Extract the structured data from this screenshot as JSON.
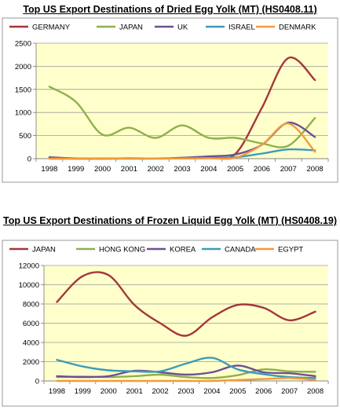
{
  "chart_data": [
    {
      "type": "line",
      "title": "Top US Export Destinations of Dried Egg Yolk (MT) (HS0408.11)",
      "xlabel": "",
      "ylabel": "",
      "x": [
        "1998",
        "1999",
        "2000",
        "2001",
        "2002",
        "2003",
        "2004",
        "2005",
        "2006",
        "2007",
        "2008"
      ],
      "ylim": [
        0,
        2500
      ],
      "yticks": [
        0,
        500,
        1000,
        1500,
        2000,
        2500
      ],
      "grid": true,
      "legend": "top",
      "background": "#ffffcc",
      "series": [
        {
          "name": "GERMANY",
          "color": "#a4373a",
          "values": [
            20,
            0,
            0,
            5,
            5,
            5,
            30,
            100,
            1100,
            2180,
            1700
          ]
        },
        {
          "name": "JAPAN",
          "color": "#8fb04b",
          "values": [
            1560,
            1230,
            520,
            670,
            450,
            720,
            450,
            450,
            330,
            280,
            880
          ]
        },
        {
          "name": "UK",
          "color": "#6e4f95",
          "values": [
            30,
            5,
            0,
            10,
            5,
            20,
            50,
            90,
            300,
            780,
            470
          ]
        },
        {
          "name": "ISRAEL",
          "color": "#3d9bb8",
          "values": [
            0,
            0,
            0,
            0,
            0,
            5,
            10,
            30,
            110,
            200,
            180
          ]
        },
        {
          "name": "DENMARK",
          "color": "#f39a3b",
          "values": [
            0,
            0,
            0,
            5,
            5,
            5,
            10,
            20,
            300,
            760,
            150
          ]
        }
      ]
    },
    {
      "type": "line",
      "title": "Top US Export Destinations of Frozen Liquid Egg Yolk (MT) (HS0408.19)",
      "xlabel": "",
      "ylabel": "",
      "x": [
        "1998",
        "1999",
        "2000",
        "2001",
        "2002",
        "2003",
        "2004",
        "2005",
        "2006",
        "2007",
        "2008"
      ],
      "ylim": [
        0,
        12000
      ],
      "yticks": [
        0,
        2000,
        4000,
        6000,
        8000,
        10000,
        12000
      ],
      "grid": true,
      "legend": "top",
      "background": "#ffffcc",
      "series": [
        {
          "name": "JAPAN",
          "color": "#a4373a",
          "values": [
            8200,
            10900,
            11000,
            7900,
            6000,
            4700,
            6600,
            7900,
            7600,
            6300,
            7200
          ]
        },
        {
          "name": "HONG KONG",
          "color": "#8fb04b",
          "values": [
            400,
            450,
            400,
            500,
            650,
            400,
            300,
            600,
            1200,
            1000,
            950
          ]
        },
        {
          "name": "KOREA",
          "color": "#6e4f95",
          "values": [
            500,
            400,
            500,
            1050,
            900,
            650,
            900,
            1600,
            900,
            800,
            500
          ]
        },
        {
          "name": "CANADA",
          "color": "#3d9bb8",
          "values": [
            2200,
            1500,
            1100,
            1000,
            1000,
            1800,
            2400,
            1200,
            700,
            400,
            300
          ]
        },
        {
          "name": "EGYPT",
          "color": "#f39a3b",
          "values": [
            0,
            0,
            0,
            0,
            0,
            0,
            0,
            100,
            200,
            300,
            100
          ]
        }
      ]
    }
  ]
}
